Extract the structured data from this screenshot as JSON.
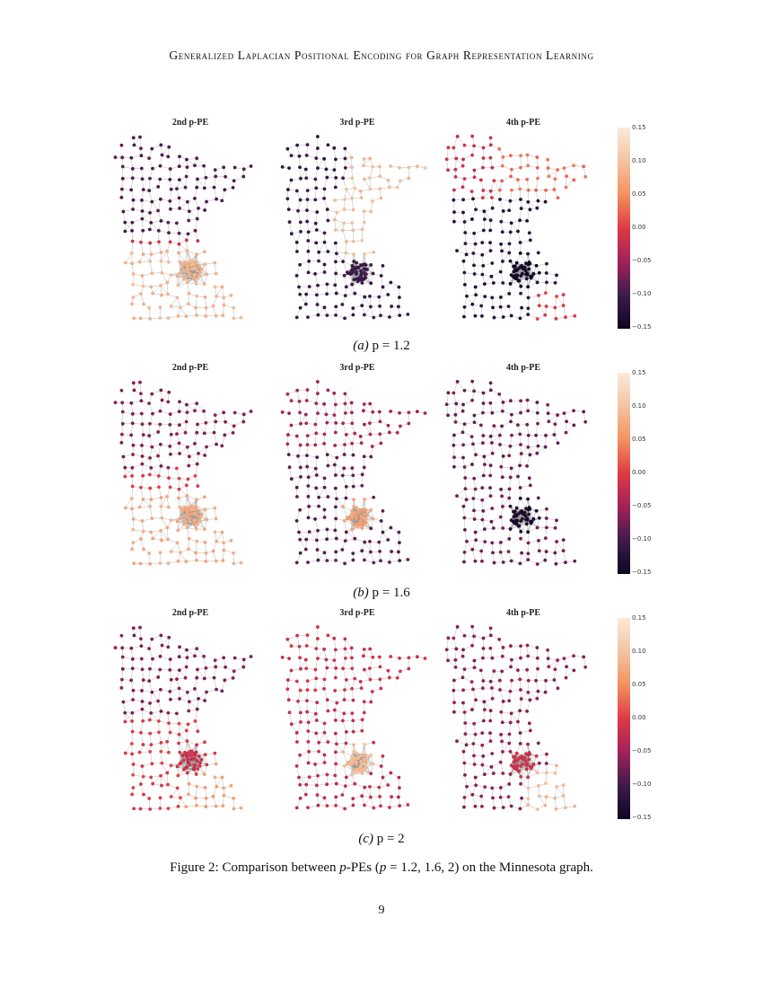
{
  "header": {
    "running_title": "Generalized Laplacian Positional Encoding for Graph Representation Learning"
  },
  "colors": {
    "low": "#0d0620",
    "dark_purple": "#3d1b4a",
    "magenta": "#a1225a",
    "red": "#de3a43",
    "orange": "#f3915f",
    "peach": "#f3c4a2",
    "light": "#faeadc",
    "edge": "#999999"
  },
  "figure": {
    "rows": [
      {
        "subcaption_label": "(a)",
        "subcaption_value": " p = 1.2",
        "panels": [
          {
            "title": "2nd p-PE",
            "pattern": "row_a_2"
          },
          {
            "title": "3rd p-PE",
            "pattern": "row_a_3"
          },
          {
            "title": "4th p-PE",
            "pattern": "row_a_4"
          }
        ],
        "colorbar_ticks": [
          "0.15",
          "0.10",
          "0.05",
          "0.00",
          "−0.05",
          "−0.10",
          "−0.15"
        ]
      },
      {
        "subcaption_label": "(b)",
        "subcaption_value": " p = 1.6",
        "panels": [
          {
            "title": "2nd p-PE",
            "pattern": "row_b_2"
          },
          {
            "title": "3rd p-PE",
            "pattern": "row_b_3"
          },
          {
            "title": "4th p-PE",
            "pattern": "row_b_4"
          }
        ],
        "colorbar_ticks": [
          "0.15",
          "0.10",
          "0.05",
          "0.00",
          "−0.05",
          "−0.10",
          "−0.15"
        ]
      },
      {
        "subcaption_label": "(c)",
        "subcaption_value": " p = 2",
        "panels": [
          {
            "title": "2nd p-PE",
            "pattern": "row_c_2"
          },
          {
            "title": "3rd p-PE",
            "pattern": "row_c_3"
          },
          {
            "title": "4th p-PE",
            "pattern": "row_c_4"
          }
        ],
        "colorbar_ticks": [
          "0.15",
          "0.10",
          "0.05",
          "0.00",
          "−0.05",
          "−0.10",
          "−0.15"
        ]
      }
    ],
    "caption_prefix": "Figure 2: Comparison between ",
    "caption_p": "p",
    "caption_mid": "-PEs (",
    "caption_p2": "p",
    "caption_suffix": " = 1.2, 1.6, 2) on the Minnesota graph."
  },
  "page_number": "9"
}
